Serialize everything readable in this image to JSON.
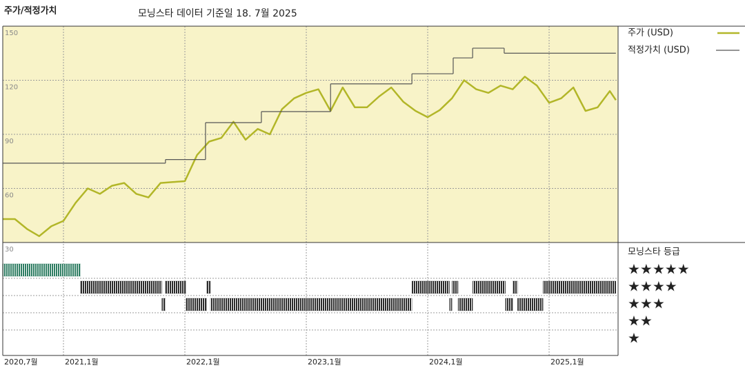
{
  "chart_data": [
    {
      "type": "line",
      "title": "주가/적정가치",
      "subtitle": "모닝스타 데이터 기준일 18. 7월 2025",
      "xlim": [
        2020.5,
        2025.568
      ],
      "xticks": [
        {
          "value": 2020.5,
          "label": "2020,7월"
        },
        {
          "value": 2021.0,
          "label": "2021,1월"
        },
        {
          "value": 2022.0,
          "label": "2022,1월"
        },
        {
          "value": 2023.0,
          "label": "2023,1월"
        },
        {
          "value": 2024.0,
          "label": "2024,1월"
        },
        {
          "value": 2025.0,
          "label": "2025,1월"
        }
      ],
      "ylim": [
        30,
        150
      ],
      "yticks": [
        30,
        60,
        90,
        120,
        150
      ],
      "grid": true,
      "series": [
        {
          "name": "주가 (USD)",
          "color": "#b2b628",
          "style": "line",
          "x": [
            2020.5,
            2020.6,
            2020.7,
            2020.8,
            2020.9,
            2021.0,
            2021.1,
            2021.2,
            2021.3,
            2021.4,
            2021.5,
            2021.6,
            2021.7,
            2021.8,
            2021.9,
            2022.0,
            2022.1,
            2022.2,
            2022.3,
            2022.4,
            2022.5,
            2022.6,
            2022.7,
            2022.8,
            2022.9,
            2023.0,
            2023.1,
            2023.2,
            2023.3,
            2023.4,
            2023.5,
            2023.6,
            2023.7,
            2023.8,
            2023.9,
            2024.0,
            2024.1,
            2024.2,
            2024.3,
            2024.4,
            2024.5,
            2024.6,
            2024.7,
            2024.8,
            2024.9,
            2025.0,
            2025.1,
            2025.2,
            2025.3,
            2025.4,
            2025.5,
            2025.55
          ],
          "values": [
            43,
            43,
            37.5,
            33.5,
            39,
            42,
            52,
            60,
            57,
            61.5,
            63,
            57,
            55,
            63,
            63.5,
            64,
            78.5,
            86,
            88,
            97,
            87,
            93,
            90,
            104,
            110,
            113,
            115,
            103,
            116,
            105,
            105,
            111,
            116,
            108,
            103,
            99.5,
            103.5,
            110,
            120,
            115,
            113,
            117,
            115,
            122,
            117,
            107.5,
            110,
            116,
            103,
            105,
            114,
            109
          ]
        },
        {
          "name": "적정가치 (USD)",
          "color": "#555555",
          "style": "step",
          "x": [
            2020.5,
            2021.84,
            2022.17,
            2022.63,
            2023.2,
            2023.87,
            2024.21,
            2024.37,
            2024.63,
            2025.55
          ],
          "values": [
            74,
            76,
            96.5,
            102.6,
            118,
            123.6,
            132.4,
            137.8,
            135,
            135
          ]
        }
      ]
    },
    {
      "type": "rating",
      "title": "모닝스타 등급",
      "levels": [
        {
          "value": 5,
          "label": "★★★★★",
          "color": "#2e7d62"
        },
        {
          "value": 4,
          "label": "★★★★",
          "color": "#2b2b2b"
        },
        {
          "value": 3,
          "label": "★★★",
          "color": "#2b2b2b"
        },
        {
          "value": 2,
          "label": "★★",
          "color": "#2b2b2b"
        },
        {
          "value": 1,
          "label": "★",
          "color": "#2b2b2b"
        }
      ],
      "periods": {
        "start": [
          2020.5,
          2021.14,
          2021.81,
          2021.84,
          2022.01,
          2022.18,
          2022.21,
          2023.87,
          2024.18,
          2024.2,
          2024.25,
          2024.37,
          2024.64,
          2024.7,
          2024.74,
          2024.95
        ],
        "end": [
          2021.14,
          2021.81,
          2021.84,
          2022.01,
          2022.18,
          2022.21,
          2023.87,
          2024.18,
          2024.2,
          2024.25,
          2024.37,
          2024.64,
          2024.7,
          2024.74,
          2024.95,
          2025.55
        ],
        "stars": [
          5,
          4,
          3,
          4,
          3,
          4,
          3,
          4,
          3,
          4,
          3,
          4,
          3,
          4,
          3,
          4
        ]
      }
    }
  ]
}
